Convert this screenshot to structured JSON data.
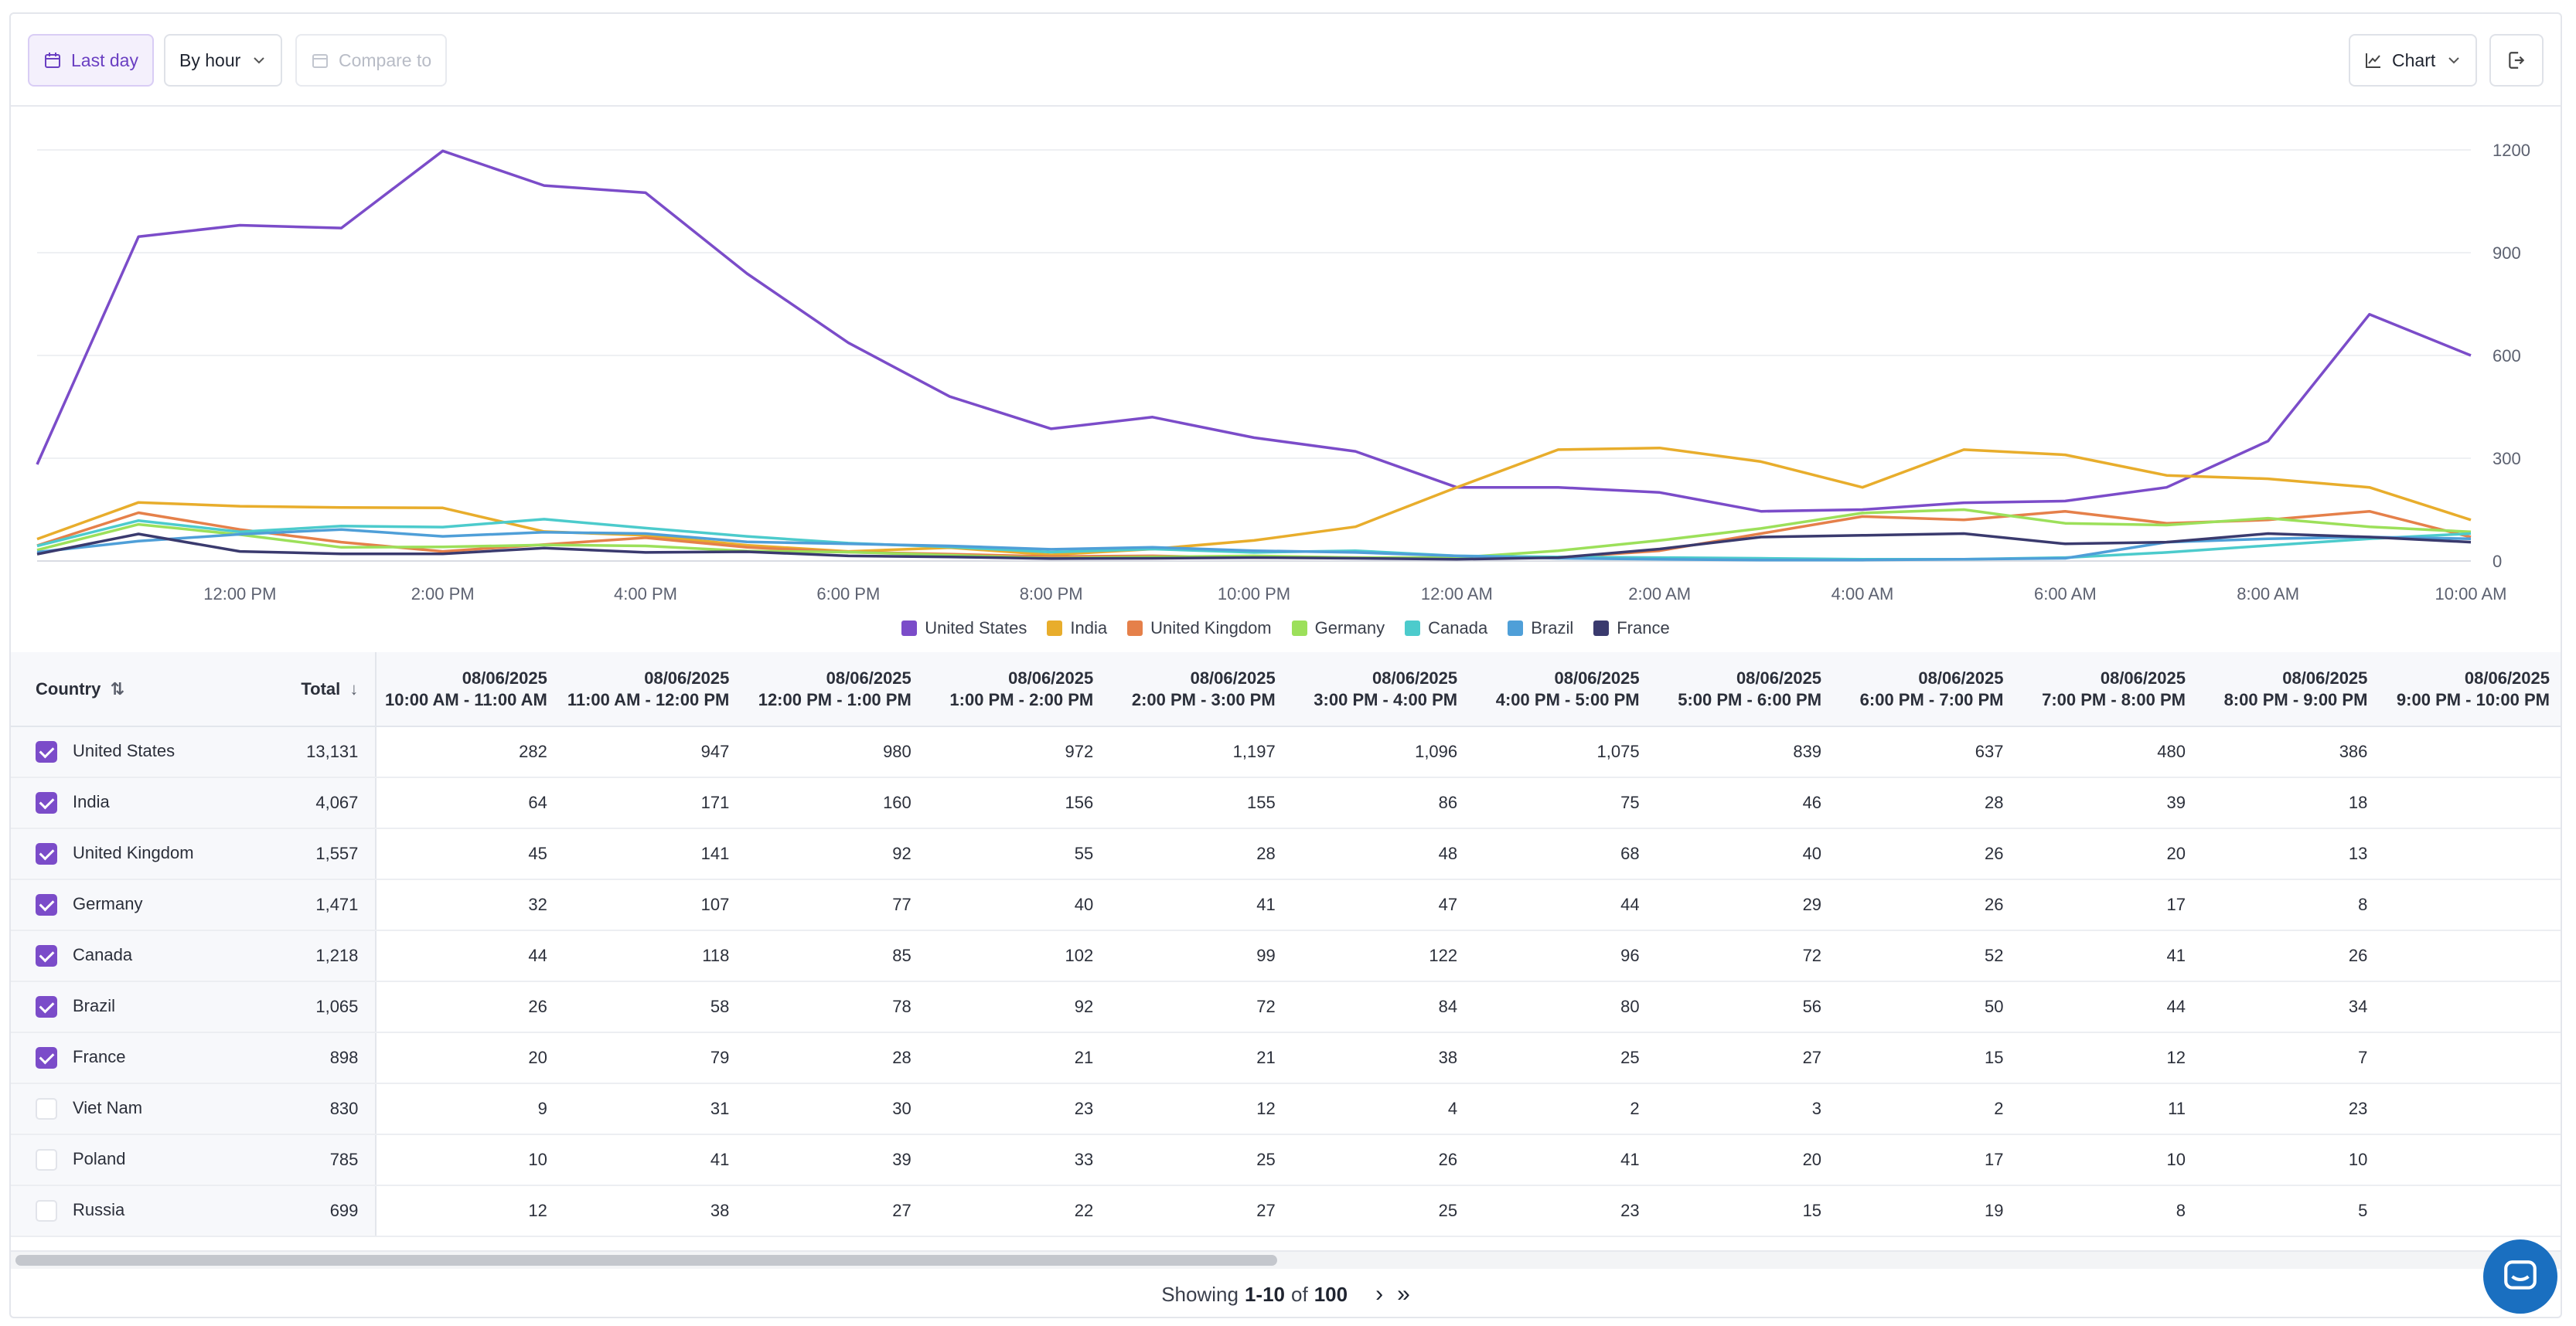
{
  "toolbar": {
    "date_range": "Last day",
    "granularity": "By hour",
    "compare_placeholder": "Compare to",
    "view_mode": "Chart",
    "colors": {
      "accent": "#6a3fc2",
      "accent_bg": "#f4f0fc"
    }
  },
  "chart_data": {
    "type": "line",
    "x": [
      "10:00 AM",
      "11:00 AM",
      "12:00 PM",
      "1:00 PM",
      "2:00 PM",
      "3:00 PM",
      "4:00 PM",
      "5:00 PM",
      "6:00 PM",
      "7:00 PM",
      "8:00 PM",
      "9:00 PM",
      "10:00 PM",
      "11:00 PM",
      "12:00 AM",
      "1:00 AM",
      "2:00 AM",
      "3:00 AM",
      "4:00 AM",
      "5:00 AM",
      "6:00 AM",
      "7:00 AM",
      "8:00 AM",
      "9:00 AM",
      "10:00 AM"
    ],
    "x_tick_labels": [
      "12:00 PM",
      "2:00 PM",
      "4:00 PM",
      "6:00 PM",
      "8:00 PM",
      "10:00 PM",
      "12:00 AM",
      "2:00 AM",
      "4:00 AM",
      "6:00 AM",
      "8:00 AM",
      "10:00 AM"
    ],
    "x_tick_indices": [
      2,
      4,
      6,
      8,
      10,
      12,
      14,
      16,
      18,
      20,
      22,
      24
    ],
    "y_ticks": [
      "1200",
      "900",
      "600",
      "300",
      "0"
    ],
    "y_tick_values": [
      1200,
      900,
      600,
      300,
      0
    ],
    "ylim": [
      0,
      1200
    ],
    "y_axis_side": "right",
    "grid": true,
    "legend_position": "bottom",
    "series": [
      {
        "name": "United States",
        "color": "#7b4cc9",
        "values": [
          282,
          947,
          980,
          972,
          1197,
          1096,
          1075,
          839,
          637,
          480,
          386,
          420,
          360,
          320,
          215,
          215,
          200,
          145,
          150,
          170,
          175,
          215,
          350,
          720,
          600
        ]
      },
      {
        "name": "India",
        "color": "#e8ad2c",
        "values": [
          64,
          171,
          160,
          156,
          155,
          86,
          75,
          46,
          28,
          39,
          18,
          35,
          60,
          100,
          215,
          325,
          330,
          290,
          215,
          325,
          310,
          250,
          240,
          215,
          120
        ]
      },
      {
        "name": "United Kingdom",
        "color": "#e5804a",
        "values": [
          45,
          141,
          92,
          55,
          28,
          48,
          68,
          40,
          26,
          20,
          13,
          15,
          10,
          10,
          8,
          10,
          30,
          80,
          130,
          120,
          145,
          110,
          120,
          145,
          70
        ]
      },
      {
        "name": "Germany",
        "color": "#9ce05a",
        "values": [
          32,
          107,
          77,
          40,
          41,
          47,
          44,
          29,
          26,
          17,
          8,
          12,
          15,
          10,
          10,
          30,
          60,
          95,
          140,
          150,
          110,
          105,
          125,
          100,
          85
        ]
      },
      {
        "name": "Canada",
        "color": "#4ccbcc",
        "values": [
          44,
          118,
          85,
          102,
          99,
          122,
          96,
          72,
          52,
          41,
          26,
          35,
          25,
          30,
          15,
          12,
          10,
          8,
          5,
          5,
          10,
          25,
          45,
          65,
          80
        ]
      },
      {
        "name": "Brazil",
        "color": "#4f9fd8",
        "values": [
          26,
          58,
          78,
          92,
          72,
          84,
          80,
          56,
          50,
          44,
          34,
          40,
          30,
          25,
          15,
          8,
          5,
          3,
          3,
          5,
          8,
          55,
          65,
          70,
          65
        ]
      },
      {
        "name": "France",
        "color": "#3a3a6e",
        "values": [
          20,
          79,
          28,
          21,
          21,
          38,
          25,
          27,
          15,
          12,
          7,
          8,
          10,
          8,
          5,
          10,
          35,
          70,
          75,
          80,
          50,
          55,
          80,
          70,
          55
        ]
      }
    ]
  },
  "table": {
    "header_country": "Country",
    "header_total": "Total",
    "columns": [
      {
        "date": "08/06/2025",
        "range": "10:00 AM - 11:00 AM"
      },
      {
        "date": "08/06/2025",
        "range": "11:00 AM - 12:00 PM"
      },
      {
        "date": "08/06/2025",
        "range": "12:00 PM - 1:00 PM"
      },
      {
        "date": "08/06/2025",
        "range": "1:00 PM - 2:00 PM"
      },
      {
        "date": "08/06/2025",
        "range": "2:00 PM - 3:00 PM"
      },
      {
        "date": "08/06/2025",
        "range": "3:00 PM - 4:00 PM"
      },
      {
        "date": "08/06/2025",
        "range": "4:00 PM - 5:00 PM"
      },
      {
        "date": "08/06/2025",
        "range": "5:00 PM - 6:00 PM"
      },
      {
        "date": "08/06/2025",
        "range": "6:00 PM - 7:00 PM"
      },
      {
        "date": "08/06/2025",
        "range": "7:00 PM - 8:00 PM"
      },
      {
        "date": "08/06/2025",
        "range": "8:00 PM - 9:00 PM"
      },
      {
        "date": "08/06/2025",
        "range": "9:00 PM - 10:00 PM"
      }
    ],
    "rows": [
      {
        "country": "United States",
        "checked": true,
        "total": "13,131",
        "values": [
          "282",
          "947",
          "980",
          "972",
          "1,197",
          "1,096",
          "1,075",
          "839",
          "637",
          "480",
          "386",
          ""
        ]
      },
      {
        "country": "India",
        "checked": true,
        "total": "4,067",
        "values": [
          "64",
          "171",
          "160",
          "156",
          "155",
          "86",
          "75",
          "46",
          "28",
          "39",
          "18",
          ""
        ]
      },
      {
        "country": "United Kingdom",
        "checked": true,
        "total": "1,557",
        "values": [
          "45",
          "141",
          "92",
          "55",
          "28",
          "48",
          "68",
          "40",
          "26",
          "20",
          "13",
          ""
        ]
      },
      {
        "country": "Germany",
        "checked": true,
        "total": "1,471",
        "values": [
          "32",
          "107",
          "77",
          "40",
          "41",
          "47",
          "44",
          "29",
          "26",
          "17",
          "8",
          ""
        ]
      },
      {
        "country": "Canada",
        "checked": true,
        "total": "1,218",
        "values": [
          "44",
          "118",
          "85",
          "102",
          "99",
          "122",
          "96",
          "72",
          "52",
          "41",
          "26",
          ""
        ]
      },
      {
        "country": "Brazil",
        "checked": true,
        "total": "1,065",
        "values": [
          "26",
          "58",
          "78",
          "92",
          "72",
          "84",
          "80",
          "56",
          "50",
          "44",
          "34",
          ""
        ]
      },
      {
        "country": "France",
        "checked": true,
        "total": "898",
        "values": [
          "20",
          "79",
          "28",
          "21",
          "21",
          "38",
          "25",
          "27",
          "15",
          "12",
          "7",
          ""
        ]
      },
      {
        "country": "Viet Nam",
        "checked": false,
        "total": "830",
        "values": [
          "9",
          "31",
          "30",
          "23",
          "12",
          "4",
          "2",
          "3",
          "2",
          "11",
          "23",
          ""
        ]
      },
      {
        "country": "Poland",
        "checked": false,
        "total": "785",
        "values": [
          "10",
          "41",
          "39",
          "33",
          "25",
          "26",
          "41",
          "20",
          "17",
          "10",
          "10",
          ""
        ]
      },
      {
        "country": "Russia",
        "checked": false,
        "total": "699",
        "values": [
          "12",
          "38",
          "27",
          "22",
          "27",
          "25",
          "23",
          "15",
          "19",
          "8",
          "5",
          ""
        ]
      }
    ]
  },
  "footer": {
    "showing_prefix": "Showing",
    "range": "1-10",
    "of_label": "of",
    "total": "100"
  }
}
